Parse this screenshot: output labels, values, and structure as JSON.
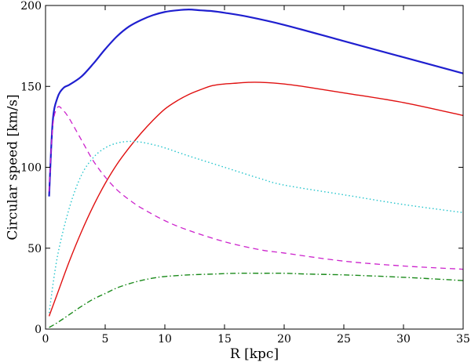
{
  "chart_data": {
    "type": "line",
    "title": "",
    "xlabel": "R [kpc]",
    "ylabel": "Circular speed [km/s]",
    "xlim": [
      0,
      35
    ],
    "ylim": [
      0,
      200
    ],
    "xticks": [
      0,
      5,
      10,
      15,
      20,
      25,
      30,
      35
    ],
    "yticks": [
      0,
      50,
      100,
      150,
      200
    ],
    "grid": false,
    "legend": "none",
    "series": [
      {
        "color": "#1f1fcf",
        "style": "solid-thick",
        "x": [
          0.3,
          0.6,
          1.0,
          1.5,
          2.0,
          3.0,
          4.0,
          5.0,
          6.0,
          7.0,
          8.0,
          9.0,
          10.0,
          11.0,
          12.0,
          13.0,
          14.0,
          15.0,
          17.0,
          20.0,
          25.0,
          30.0,
          35.0
        ],
        "y": [
          82,
          128,
          143,
          149,
          151,
          156,
          164,
          173,
          181,
          187,
          191,
          194,
          196,
          197,
          197.5,
          197,
          196.5,
          195.5,
          193,
          188,
          178,
          168,
          158
        ]
      },
      {
        "color": "#e01010",
        "style": "solid",
        "x": [
          0.3,
          1.0,
          2.0,
          3.0,
          4.0,
          5.0,
          6.0,
          7.0,
          8.0,
          9.0,
          10.0,
          11.0,
          12.0,
          13.0,
          14.0,
          15.0,
          16.0,
          17.0,
          18.0,
          20.0,
          22.0,
          25.0,
          30.0,
          35.0
        ],
        "y": [
          8,
          22,
          42,
          60,
          76,
          90,
          102,
          112,
          121,
          129,
          136,
          141,
          145,
          148,
          150.5,
          151.5,
          152,
          152.5,
          152.5,
          151.5,
          149.5,
          146,
          140,
          132
        ]
      },
      {
        "color": "#cc22cc",
        "style": "dashed",
        "x": [
          0.3,
          0.6,
          1.0,
          1.5,
          2.0,
          3.0,
          4.0,
          5.0,
          6.0,
          7.0,
          8.0,
          10.0,
          12.0,
          15.0,
          18.0,
          20.0,
          25.0,
          30.0,
          35.0
        ],
        "y": [
          85,
          125,
          137,
          135,
          130,
          117,
          104,
          94,
          86,
          80,
          75,
          67,
          61,
          54,
          49,
          47,
          42,
          39,
          37
        ]
      },
      {
        "color": "#22c4cc",
        "style": "dotted",
        "x": [
          0.3,
          1.0,
          2.0,
          3.0,
          4.0,
          5.0,
          6.0,
          7.0,
          8.0,
          9.0,
          10.0,
          12.0,
          15.0,
          18.0,
          20.0,
          25.0,
          30.0,
          35.0
        ],
        "y": [
          10,
          45,
          75,
          95,
          106,
          112,
          115,
          116,
          115.5,
          114,
          112,
          107,
          100,
          93,
          89,
          83,
          77,
          72
        ]
      },
      {
        "color": "#1a8a1a",
        "style": "dashdot",
        "x": [
          0.3,
          1.0,
          2.0,
          3.0,
          4.0,
          5.0,
          6.0,
          7.0,
          8.0,
          9.0,
          10.0,
          12.0,
          14.0,
          16.0,
          18.0,
          20.0,
          22.0,
          25.0,
          30.0,
          35.0
        ],
        "y": [
          1,
          4,
          9,
          14,
          18.5,
          22,
          25.5,
          28,
          30,
          31.5,
          32.5,
          33.5,
          34,
          34.5,
          34.5,
          34.5,
          34,
          33.5,
          32,
          30
        ]
      }
    ]
  }
}
